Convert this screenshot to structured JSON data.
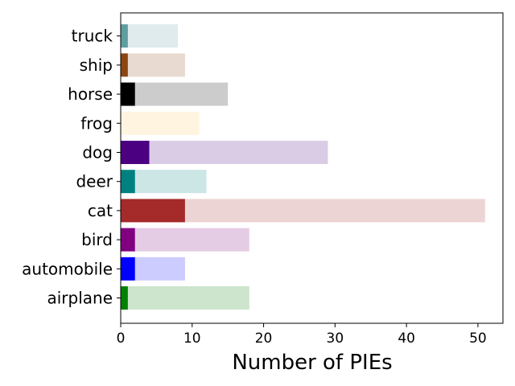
{
  "chart_data": {
    "type": "bar",
    "orientation": "horizontal",
    "stacked": true,
    "categories": [
      "airplane",
      "automobile",
      "bird",
      "cat",
      "deer",
      "dog",
      "frog",
      "horse",
      "ship",
      "truck"
    ],
    "series": [
      {
        "values": [
          1,
          2,
          2,
          9,
          2,
          4,
          0,
          2,
          1,
          1
        ]
      },
      {
        "values": [
          17,
          7,
          16,
          42,
          10,
          25,
          11,
          13,
          8,
          7
        ]
      }
    ],
    "totals": [
      18,
      9,
      18,
      51,
      12,
      29,
      11,
      15,
      9,
      8
    ],
    "colors": {
      "dark": [
        "#008000",
        "#0000ff",
        "#800080",
        "#a52a2a",
        "#008080",
        "#4b0082",
        "#ffe4b5",
        "#000000",
        "#8b4513",
        "#5f9ea0"
      ],
      "light": [
        "#cce5cc",
        "#ccccff",
        "#e5cce5",
        "#edd4d4",
        "#cce5e5",
        "#dbcce6",
        "#fff4e0",
        "#cccccc",
        "#e8dad0",
        "#dfebec"
      ]
    },
    "title": "",
    "xlabel": "Number of PIEs",
    "ylabel": "",
    "xlim": [
      0,
      53.5
    ],
    "xticks": [
      0,
      10,
      20,
      30,
      40,
      50
    ],
    "grid": false,
    "legend": "none"
  }
}
